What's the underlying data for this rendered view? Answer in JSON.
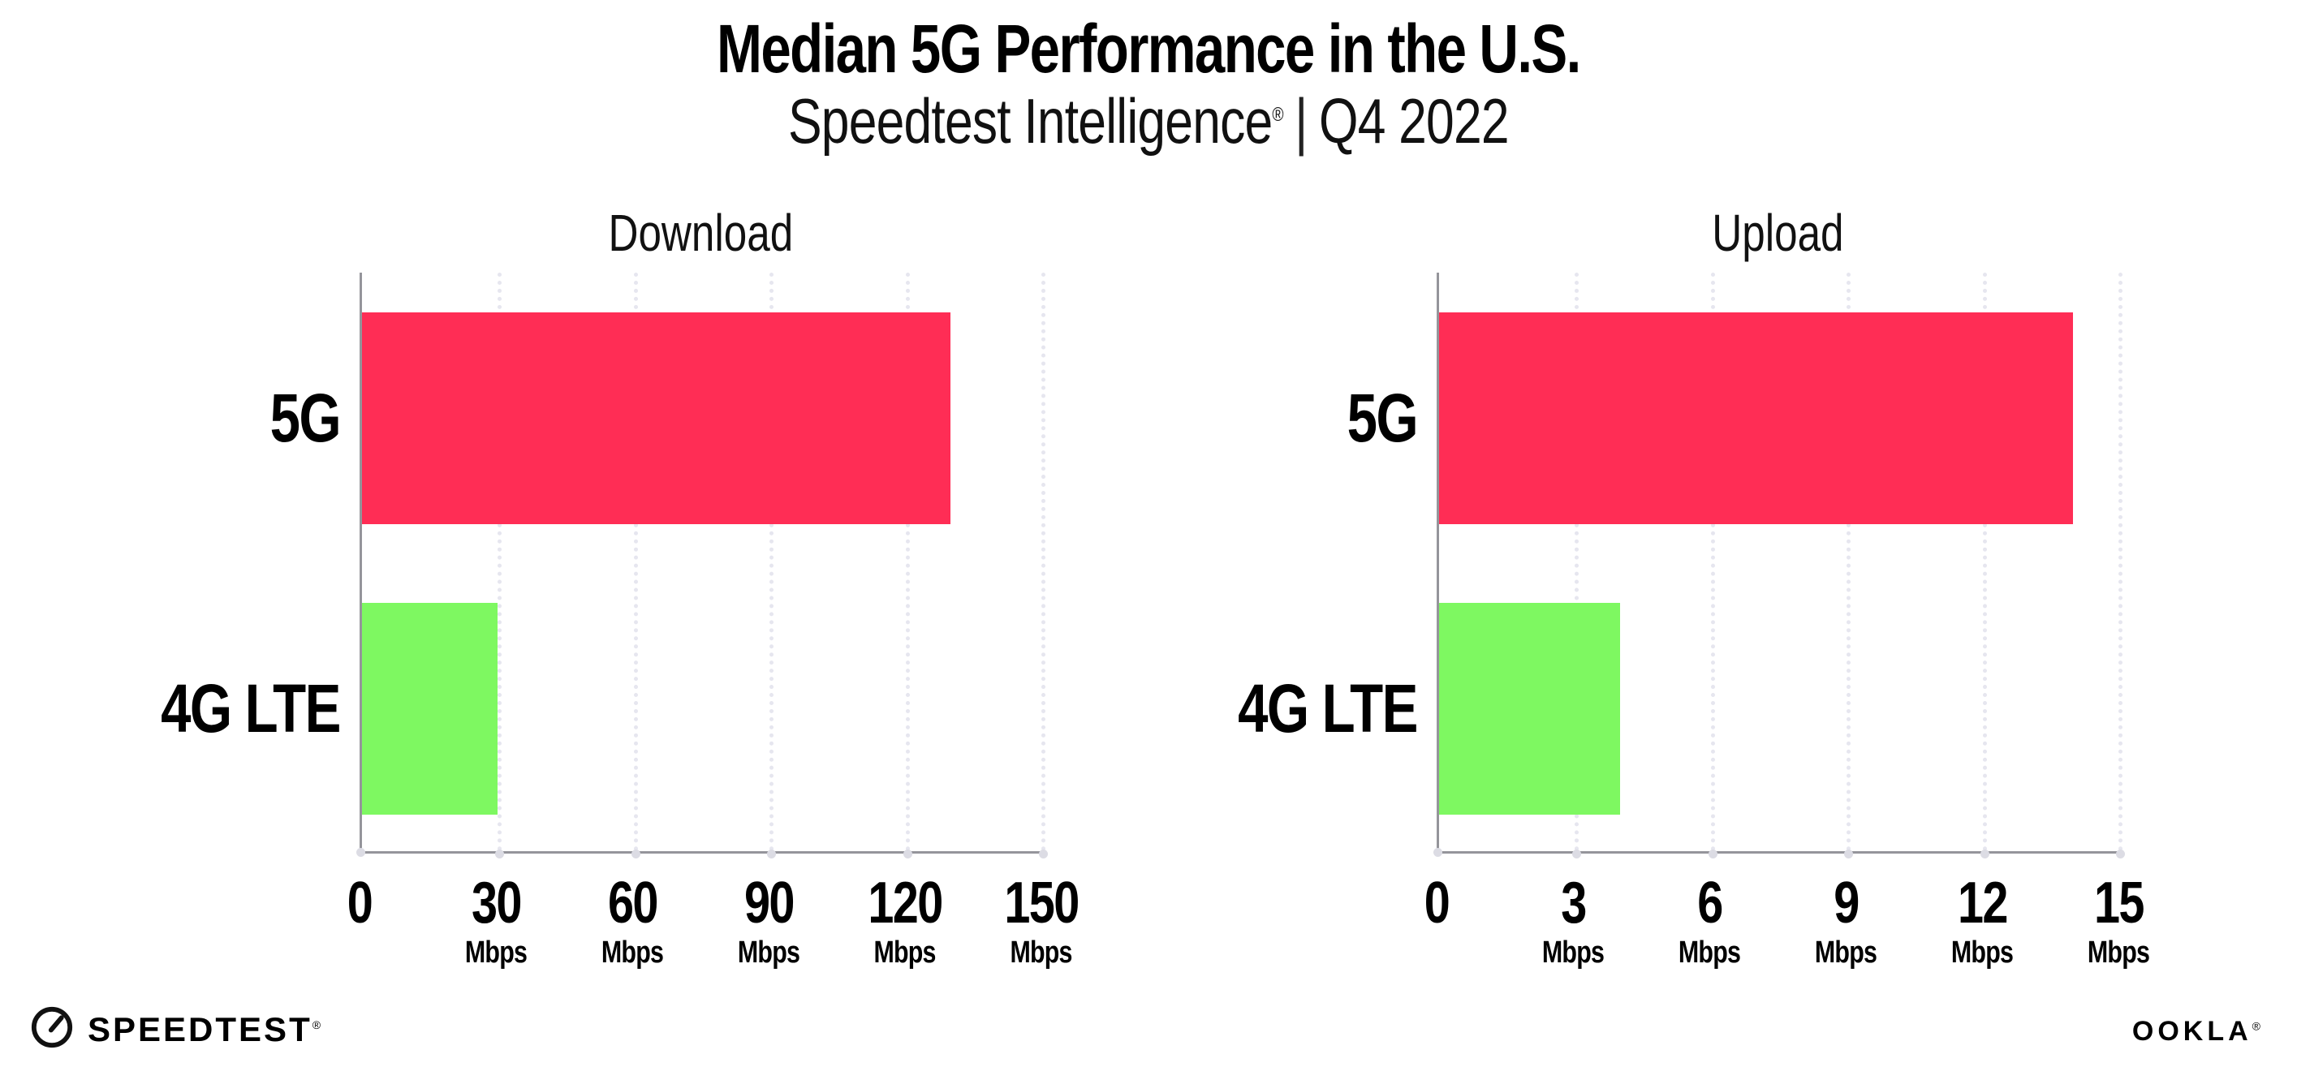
{
  "header": {
    "title": "Median 5G Performance in the U.S.",
    "subtitle": {
      "brand": "Speedtest Intelligence",
      "registered_mark": "®",
      "divider": "|",
      "period": "Q4 2022"
    }
  },
  "chart_data": [
    {
      "type": "bar",
      "orientation": "horizontal",
      "title": "Download",
      "categories": [
        "5G",
        "4G LTE"
      ],
      "values": [
        130,
        30
      ],
      "unit": "Mbps",
      "xlabel": "",
      "ylabel": "",
      "xlim": [
        0,
        150
      ],
      "xticks": [
        0,
        30,
        60,
        90,
        120,
        150
      ],
      "bar_colors": [
        "#ff2d55",
        "#7ef861"
      ],
      "grid": "dotted vertical gridlines at each tick, hidden at 0",
      "legend": "none",
      "data_labels": "none"
    },
    {
      "type": "bar",
      "orientation": "horizontal",
      "title": "Upload",
      "categories": [
        "5G",
        "4G LTE"
      ],
      "values": [
        14,
        4
      ],
      "unit": "Mbps",
      "xlabel": "",
      "ylabel": "",
      "xlim": [
        0,
        15
      ],
      "xticks": [
        0,
        3,
        6,
        9,
        12,
        15
      ],
      "bar_colors": [
        "#ff2d55",
        "#7ef861"
      ],
      "grid": "dotted vertical gridlines at each tick, hidden at 0",
      "legend": "none",
      "data_labels": "none"
    }
  ],
  "footer": {
    "speedtest_logo": {
      "text": "SPEEDTEST",
      "registered_mark": "®",
      "icon": "gauge-icon"
    },
    "ookla_logo": {
      "text": "OOKLA",
      "registered_mark": "®"
    }
  },
  "colors": {
    "bar_5g": "#ff2d55",
    "bar_4g_lte": "#7ef861",
    "axis": "#95959b",
    "gridline": "#e6e6ef",
    "text": "#000000",
    "background": "#ffffff"
  }
}
